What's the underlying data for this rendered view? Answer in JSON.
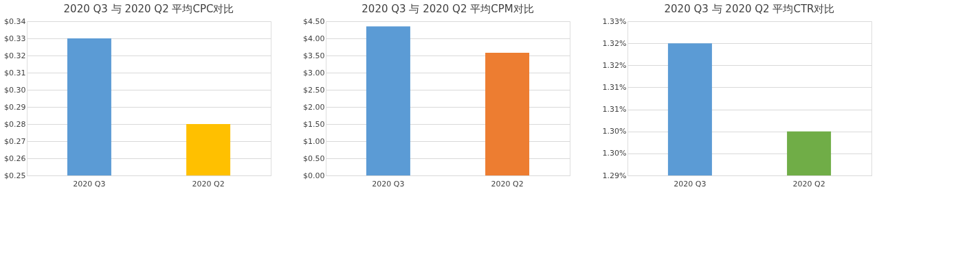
{
  "chart_data": [
    {
      "type": "bar",
      "title": "2020 Q3 与 2020 Q2 平均CPC对比",
      "categories": [
        "2020 Q3",
        "2020 Q2"
      ],
      "values": [
        0.33,
        0.28
      ],
      "colors": [
        "#5b9bd5",
        "#ffc000"
      ],
      "ylim": [
        0.25,
        0.34
      ],
      "yticks": [
        {
          "value": 0.25,
          "label": "$0.25"
        },
        {
          "value": 0.26,
          "label": "$0.26"
        },
        {
          "value": 0.27,
          "label": "$0.27"
        },
        {
          "value": 0.28,
          "label": "$0.28"
        },
        {
          "value": 0.29,
          "label": "$0.29"
        },
        {
          "value": 0.3,
          "label": "$0.30"
        },
        {
          "value": 0.31,
          "label": "$0.31"
        },
        {
          "value": 0.32,
          "label": "$0.32"
        },
        {
          "value": 0.33,
          "label": "$0.33"
        },
        {
          "value": 0.34,
          "label": "$0.34"
        }
      ],
      "grid": "y"
    },
    {
      "type": "bar",
      "title": "2020 Q3 与 2020 Q2 平均CPM对比",
      "categories": [
        "2020 Q3",
        "2020 Q2"
      ],
      "values": [
        4.35,
        3.58
      ],
      "colors": [
        "#5b9bd5",
        "#ed7d31"
      ],
      "ylim": [
        0,
        4.5
      ],
      "yticks": [
        {
          "value": 0,
          "label": "$0.00"
        },
        {
          "value": 0.5,
          "label": "$0.50"
        },
        {
          "value": 1,
          "label": "$1.00"
        },
        {
          "value": 1.5,
          "label": "$1.50"
        },
        {
          "value": 2,
          "label": "$2.00"
        },
        {
          "value": 2.5,
          "label": "$2.50"
        },
        {
          "value": 3,
          "label": "$3.00"
        },
        {
          "value": 3.5,
          "label": "$3.50"
        },
        {
          "value": 4,
          "label": "$4.00"
        },
        {
          "value": 4.5,
          "label": "$4.50"
        }
      ],
      "grid": "y"
    },
    {
      "type": "bar",
      "title": "2020 Q3 与 2020 Q2 平均CTR对比",
      "categories": [
        "2020 Q3",
        "2020 Q2"
      ],
      "values": [
        1.32,
        1.3
      ],
      "colors": [
        "#5b9bd5",
        "#70ad47"
      ],
      "ylim": [
        1.29,
        1.325
      ],
      "yticks": [
        {
          "value": 1.29,
          "label": "1.29%"
        },
        {
          "value": 1.295,
          "label": "1.30%"
        },
        {
          "value": 1.3,
          "label": "1.30%"
        },
        {
          "value": 1.305,
          "label": "1.31%"
        },
        {
          "value": 1.31,
          "label": "1.31%"
        },
        {
          "value": 1.315,
          "label": "1.32%"
        },
        {
          "value": 1.32,
          "label": "1.32%"
        },
        {
          "value": 1.325,
          "label": "1.33%"
        }
      ],
      "grid": "y"
    }
  ]
}
